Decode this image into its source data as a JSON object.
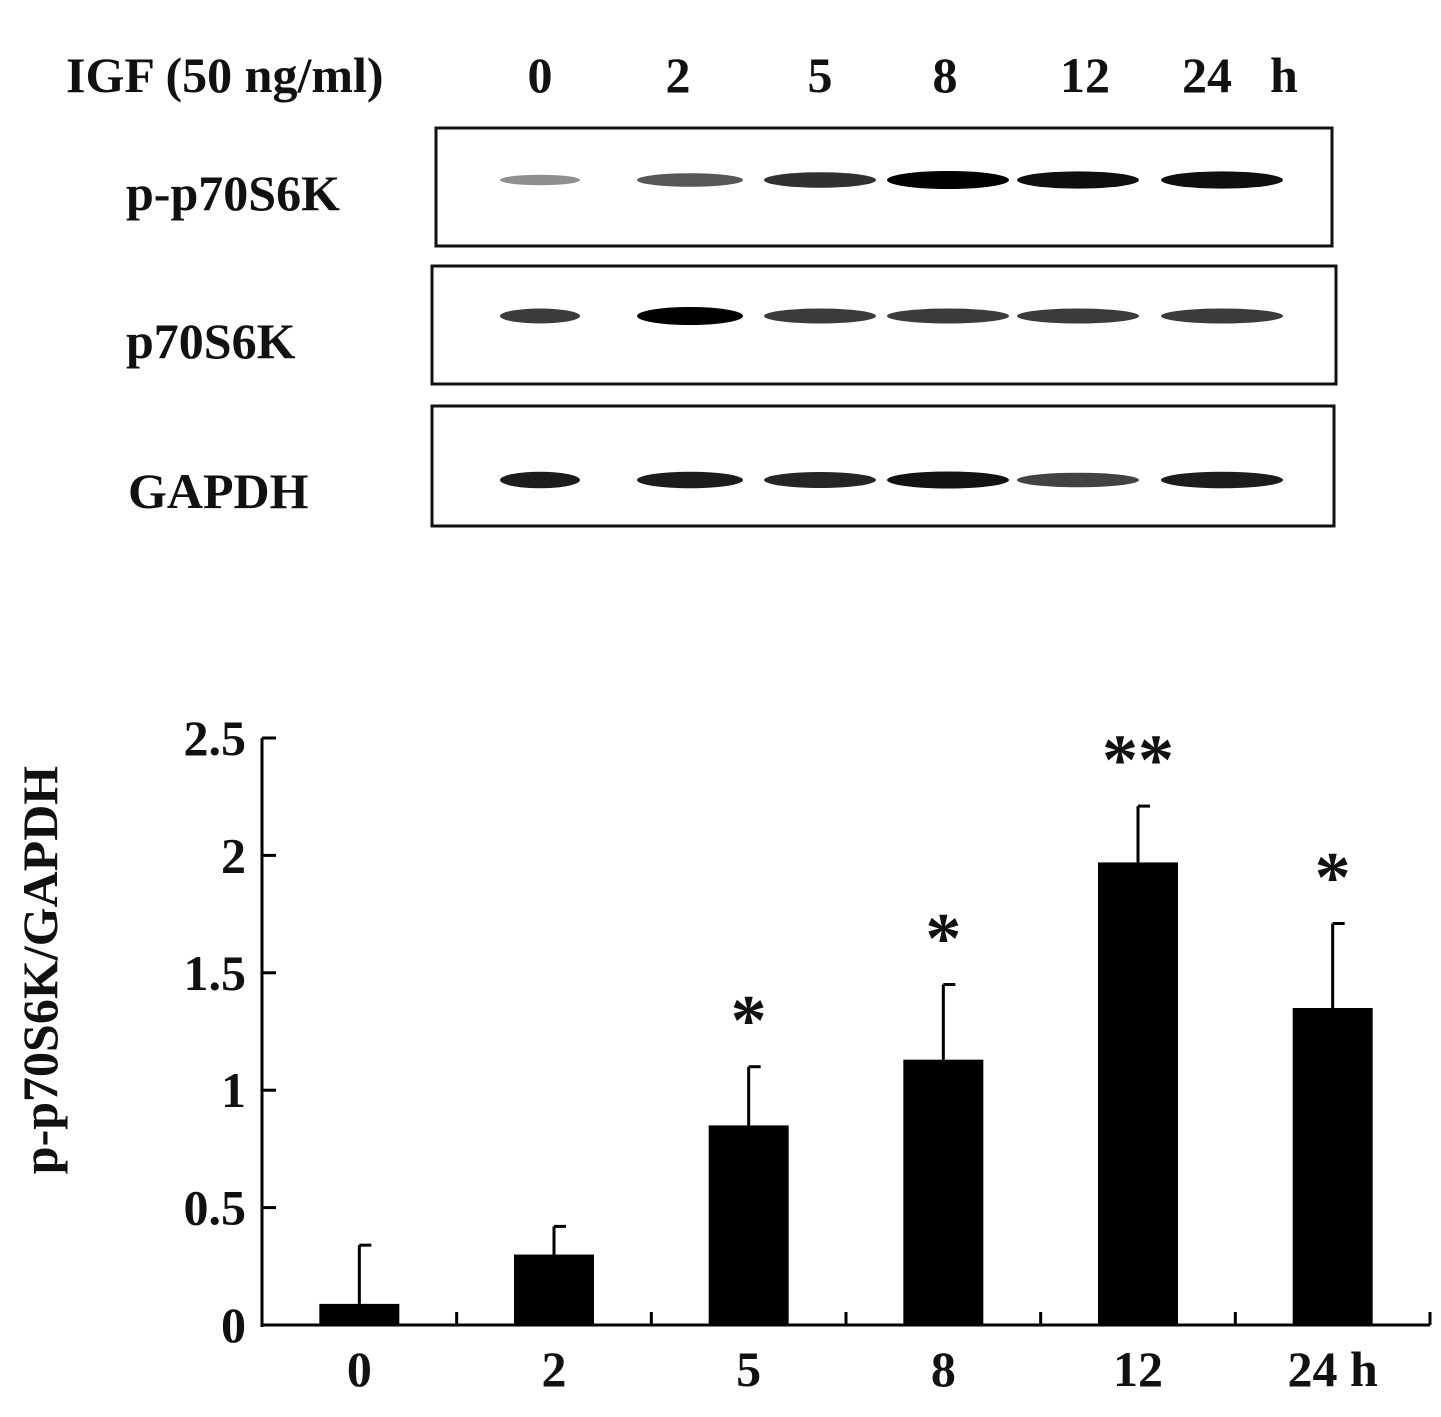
{
  "blot": {
    "treatment_label": "IGF (50 ng/ml)",
    "lanes": [
      "0",
      "2",
      "5",
      "8",
      "12",
      "24"
    ],
    "time_unit": "h",
    "rows": [
      {
        "label": "p-p70S6K",
        "intensity": [
          0.25,
          0.55,
          0.75,
          1.0,
          0.92,
          0.92
        ]
      },
      {
        "label": "p70S6K",
        "intensity": [
          0.7,
          1.0,
          0.7,
          0.7,
          0.7,
          0.7
        ]
      },
      {
        "label": "GAPDH",
        "intensity": [
          0.85,
          0.85,
          0.8,
          0.9,
          0.65,
          0.85
        ]
      }
    ]
  },
  "chart_data": {
    "type": "bar",
    "categories": [
      "0",
      "2",
      "5",
      "8",
      "12",
      "24 h"
    ],
    "values": [
      0.09,
      0.3,
      0.85,
      1.13,
      1.97,
      1.35
    ],
    "errors": [
      0.25,
      0.12,
      0.25,
      0.32,
      0.24,
      0.36
    ],
    "significance": [
      "",
      "",
      "*",
      "*",
      "**",
      "*"
    ],
    "ylabel": "p-p70S6K/GAPDH",
    "xlabel": "",
    "ylim": [
      0,
      2.5
    ],
    "yticks": [
      "0",
      "0.5",
      "1",
      "1.5",
      "2",
      "2.5"
    ],
    "bar_color": "#000000",
    "grid": false
  }
}
